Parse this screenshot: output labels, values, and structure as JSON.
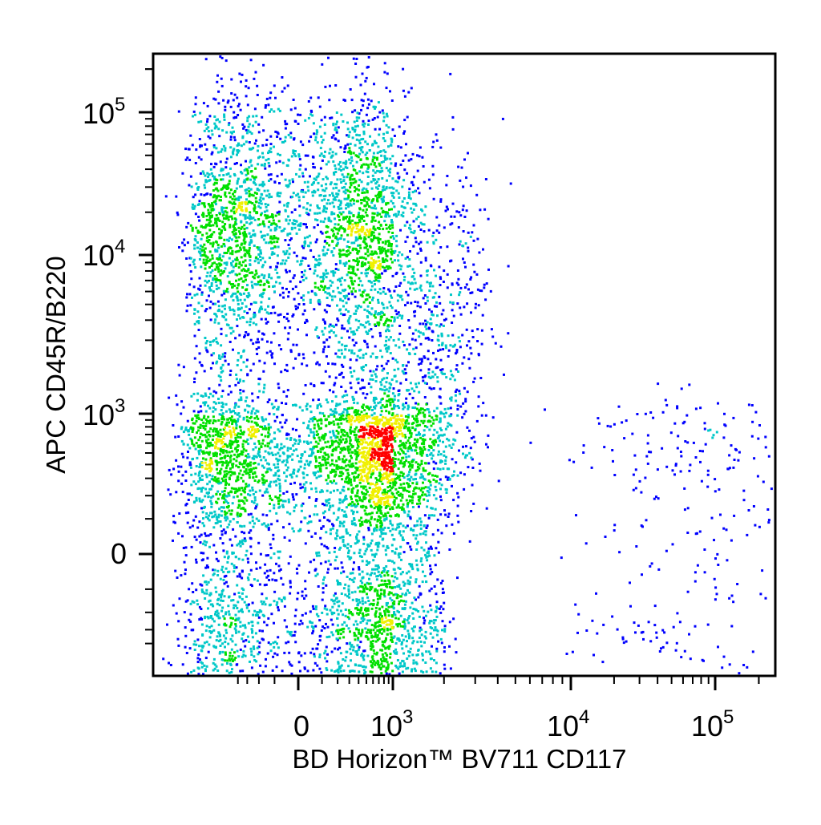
{
  "chart_data": {
    "type": "scatter",
    "style": "flow-cytometry pseudocolor density dot plot",
    "x_axis": {
      "label": "BD Horizon™ BV711 CD117",
      "scale": "biexponential",
      "range": [
        -500,
        200000
      ],
      "tick_labels": [
        {
          "value": 0,
          "base": "0",
          "exp": ""
        },
        {
          "value": 1000,
          "base": "10",
          "exp": "3"
        },
        {
          "value": 10000,
          "base": "10",
          "exp": "4"
        },
        {
          "value": 100000,
          "base": "10",
          "exp": "5"
        }
      ]
    },
    "y_axis": {
      "label": "APC CD45R/B220",
      "scale": "biexponential",
      "range": [
        -400,
        250000
      ],
      "tick_labels": [
        {
          "value": 0,
          "base": "0",
          "exp": ""
        },
        {
          "value": 1000,
          "base": "10",
          "exp": "3"
        },
        {
          "value": 10000,
          "base": "10",
          "exp": "4"
        },
        {
          "value": 100000,
          "base": "10",
          "exp": "5"
        }
      ]
    },
    "populations": [
      {
        "x_center": 0,
        "y_center": 15000,
        "x_spread": 600,
        "y_spread_log": 0.5,
        "relative_density": 0.33
      },
      {
        "x_center": 300,
        "y_center": 200,
        "x_spread": 800,
        "y_spread": 500,
        "relative_density": 0.52
      },
      {
        "x_center": 1500,
        "y_center": 3000,
        "x_spread": 1000,
        "y_spread_log": 0.6,
        "relative_density": 0.09
      },
      {
        "x_center": 60000,
        "y_center": 200,
        "x_spread_log": 0.4,
        "y_spread": 500,
        "relative_density": 0.03
      }
    ],
    "color_scale": [
      "#0000ff",
      "#00c8c8",
      "#00e000",
      "#f0f000",
      "#ff0000"
    ],
    "grid": false,
    "legend": "none"
  }
}
